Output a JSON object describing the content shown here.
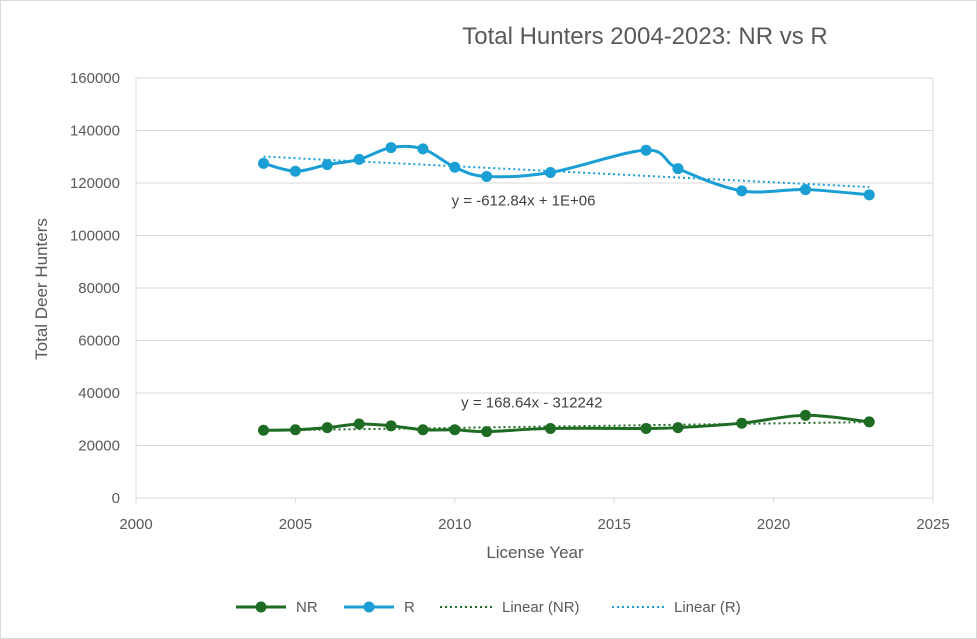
{
  "chart_data": {
    "type": "scatter",
    "title": "Total Hunters 2004-2023:  NR vs R",
    "xlabel": "License Year",
    "ylabel": "Total Deer Hunters",
    "xlim": [
      2000,
      2025
    ],
    "ylim": [
      0,
      160000
    ],
    "x_ticks": [
      "2000",
      "2005",
      "2010",
      "2015",
      "2020",
      "2025"
    ],
    "y_ticks": [
      "0",
      "20000",
      "40000",
      "60000",
      "80000",
      "100000",
      "120000",
      "140000",
      "160000"
    ],
    "grid": "horizontal",
    "legend_position": "bottom",
    "series": [
      {
        "name": "NR",
        "color": "#1e6b23",
        "points": [
          {
            "x": 2004,
            "y": 25800
          },
          {
            "x": 2005,
            "y": 26000
          },
          {
            "x": 2006,
            "y": 26800
          },
          {
            "x": 2007,
            "y": 28200
          },
          {
            "x": 2008,
            "y": 27500
          },
          {
            "x": 2009,
            "y": 26000
          },
          {
            "x": 2010,
            "y": 26000
          },
          {
            "x": 2011,
            "y": 25300
          },
          {
            "x": 2013,
            "y": 26500
          },
          {
            "x": 2016,
            "y": 26500
          },
          {
            "x": 2017,
            "y": 26800
          },
          {
            "x": 2019,
            "y": 28500
          },
          {
            "x": 2021,
            "y": 31500
          },
          {
            "x": 2023,
            "y": 29000
          }
        ]
      },
      {
        "name": "R",
        "color": "#1a9ed4",
        "points": [
          {
            "x": 2004,
            "y": 127500
          },
          {
            "x": 2005,
            "y": 124500
          },
          {
            "x": 2006,
            "y": 127000
          },
          {
            "x": 2007,
            "y": 129000
          },
          {
            "x": 2008,
            "y": 133500
          },
          {
            "x": 2009,
            "y": 133000
          },
          {
            "x": 2010,
            "y": 126000
          },
          {
            "x": 2011,
            "y": 122500
          },
          {
            "x": 2013,
            "y": 124000
          },
          {
            "x": 2016,
            "y": 132500
          },
          {
            "x": 2017,
            "y": 125500
          },
          {
            "x": 2019,
            "y": 117000
          },
          {
            "x": 2021,
            "y": 117500
          },
          {
            "x": 2023,
            "y": 115500
          }
        ]
      }
    ],
    "trendlines": [
      {
        "name": "Linear (NR)",
        "series": "NR",
        "slope": 168.64,
        "intercept": -312242,
        "x_range": [
          2004,
          2023
        ],
        "equation": "y = 168.64x - 312242",
        "color": "#1e6b23"
      },
      {
        "name": "Linear (R)",
        "series": "R",
        "slope": -612.84,
        "intercept": 1358200,
        "x_range": [
          2004,
          2023
        ],
        "equation": "y = -612.84x + 1E+06",
        "color": "#1a9ed4"
      }
    ],
    "legend": [
      "NR",
      "R",
      "Linear (NR)",
      "Linear (R)"
    ]
  }
}
